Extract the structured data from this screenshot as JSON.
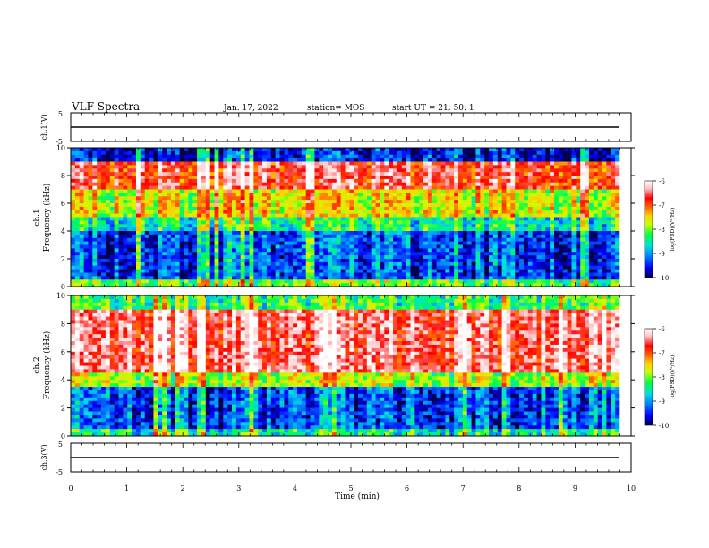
{
  "header": {
    "title": "VLF Spectra",
    "date": "Jan. 17, 2022",
    "station": "station= MOS",
    "start": "start  UT  =   21: 50: 1"
  },
  "colors": {
    "colormap": [
      "#00004a",
      "#0000ff",
      "#0080ff",
      "#00e0e0",
      "#00ff40",
      "#c8ff00",
      "#ffd000",
      "#ff6000",
      "#ff0000",
      "#ffc0c0",
      "#ffffff"
    ],
    "trace": "#000000"
  },
  "chart_data": [
    {
      "type": "line",
      "panel": "ch1-waveform",
      "ylabel": "ch.1(V)",
      "yticks": [
        "5",
        "-5"
      ],
      "ylim": [
        -5,
        5
      ],
      "description_value": "near-constant trace at about 0 V",
      "x": [
        0,
        10
      ],
      "y": [
        0,
        0
      ]
    },
    {
      "type": "heatmap",
      "panel": "ch1-spectrogram",
      "ylabel": "ch.1\nFrequency (kHz)",
      "yticks": [
        "0",
        "2",
        "4",
        "6",
        "8",
        "10"
      ],
      "ylim": [
        0,
        10
      ],
      "colorbar": {
        "label": "log(PSD)(V²/Hz)",
        "ticks": [
          "-6",
          "-7",
          "-8",
          "-9",
          "-10"
        ],
        "range": [
          -10,
          -6
        ]
      },
      "band_levels": [
        {
          "f": [
            9.0,
            10.0
          ],
          "level": -9.6
        },
        {
          "f": [
            7.0,
            9.0
          ],
          "level": -6.8
        },
        {
          "f": [
            5.0,
            7.0
          ],
          "level": -7.8
        },
        {
          "f": [
            4.0,
            5.0
          ],
          "level": -8.6
        },
        {
          "f": [
            0.5,
            4.0
          ],
          "level": -9.4
        },
        {
          "f": [
            0.0,
            0.5
          ],
          "level": -8.2
        }
      ]
    },
    {
      "type": "heatmap",
      "panel": "ch2-spectrogram",
      "ylabel": "ch.2\nFrequency (kHz)",
      "yticks": [
        "0",
        "2",
        "4",
        "6",
        "8",
        "10"
      ],
      "ylim": [
        0,
        10
      ],
      "colorbar": {
        "label": "log(PSD)(V²/Hz)",
        "ticks": [
          "-6",
          "-7",
          "-8",
          "-9",
          "-10"
        ],
        "range": [
          -10,
          -6
        ]
      },
      "band_levels": [
        {
          "f": [
            9.0,
            10.0
          ],
          "level": -8.4
        },
        {
          "f": [
            4.5,
            9.0
          ],
          "level": -6.6
        },
        {
          "f": [
            3.5,
            4.5
          ],
          "level": -8.0
        },
        {
          "f": [
            0.5,
            3.5
          ],
          "level": -9.4
        },
        {
          "f": [
            0.0,
            0.5
          ],
          "level": -8.6
        }
      ]
    },
    {
      "type": "line",
      "panel": "ch3-waveform",
      "ylabel": "ch.3(V)",
      "yticks": [
        "5",
        "-5"
      ],
      "ylim": [
        -5,
        5
      ],
      "x": [
        0,
        10
      ],
      "y": [
        0,
        0
      ]
    }
  ],
  "xaxis": {
    "label": "Time (min)",
    "ticks": [
      "0",
      "1",
      "2",
      "3",
      "4",
      "5",
      "6",
      "7",
      "8",
      "9",
      "10"
    ],
    "range": [
      0,
      10
    ]
  }
}
